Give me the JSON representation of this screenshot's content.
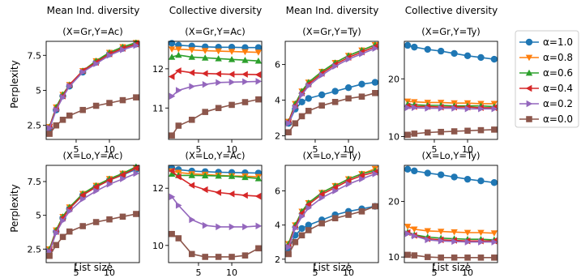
{
  "figure": {
    "column_titles": [
      "Mean Ind. diversity",
      "Collective diversity",
      "Mean Ind. diversity",
      "Collective diversity"
    ],
    "xlabel": "List size",
    "ylabel": "Perplexity"
  },
  "legend": [
    {
      "label": "α=1.0",
      "color": "#1f77b4",
      "marker": "circle"
    },
    {
      "label": "α=0.8",
      "color": "#ff7f0e",
      "marker": "triangle-down"
    },
    {
      "label": "α=0.6",
      "color": "#2ca02c",
      "marker": "triangle-up"
    },
    {
      "label": "α=0.4",
      "color": "#d62728",
      "marker": "triangle-left"
    },
    {
      "label": "α=0.2",
      "color": "#9467bd",
      "marker": "triangle-right"
    },
    {
      "label": "α=0.0",
      "color": "#8c564b",
      "marker": "square"
    }
  ],
  "chart_data": [
    {
      "type": "line",
      "title": "(X=Gr,Y=Ac)",
      "xlim": [
        0.5,
        14.5
      ],
      "ylim": [
        1.5,
        8.5
      ],
      "yticks": [
        2.5,
        5.0,
        7.5
      ],
      "xticks": [
        5,
        10
      ],
      "x": [
        1,
        2,
        3,
        4,
        6,
        8,
        10,
        12,
        14
      ],
      "series": [
        {
          "name": "α=1.0",
          "values": [
            2.3,
            3.6,
            4.6,
            5.3,
            6.3,
            7.0,
            7.6,
            8.0,
            8.3
          ]
        },
        {
          "name": "α=0.8",
          "values": [
            2.4,
            3.8,
            4.7,
            5.4,
            6.4,
            7.1,
            7.7,
            8.1,
            8.4
          ]
        },
        {
          "name": "α=0.6",
          "values": [
            2.4,
            3.8,
            4.7,
            5.4,
            6.4,
            7.1,
            7.7,
            8.1,
            8.4
          ]
        },
        {
          "name": "α=0.4",
          "values": [
            2.4,
            3.7,
            4.6,
            5.4,
            6.4,
            7.0,
            7.6,
            8.0,
            8.3
          ]
        },
        {
          "name": "α=0.2",
          "values": [
            2.3,
            3.6,
            4.5,
            5.3,
            6.3,
            6.9,
            7.5,
            7.9,
            8.2
          ]
        },
        {
          "name": "α=0.0",
          "values": [
            1.9,
            2.5,
            2.9,
            3.2,
            3.6,
            3.9,
            4.1,
            4.3,
            4.5
          ]
        }
      ]
    },
    {
      "type": "line",
      "title": "(X=Gr,Y=Ac)",
      "xlim": [
        0.5,
        14.5
      ],
      "ylim": [
        10.2,
        12.7
      ],
      "yticks": [
        11,
        12
      ],
      "xticks": [
        5,
        10
      ],
      "x": [
        1,
        2,
        4,
        6,
        8,
        10,
        12,
        14
      ],
      "series": [
        {
          "name": "α=1.0",
          "values": [
            12.65,
            12.6,
            12.58,
            12.56,
            12.55,
            12.55,
            12.54,
            12.54
          ]
        },
        {
          "name": "α=0.8",
          "values": [
            12.5,
            12.5,
            12.48,
            12.46,
            12.45,
            12.44,
            12.43,
            12.42
          ]
        },
        {
          "name": "α=0.6",
          "values": [
            12.3,
            12.35,
            12.3,
            12.28,
            12.26,
            12.24,
            12.22,
            12.2
          ]
        },
        {
          "name": "α=0.4",
          "values": [
            11.8,
            11.95,
            11.9,
            11.88,
            11.87,
            11.86,
            11.86,
            11.85
          ]
        },
        {
          "name": "α=0.2",
          "values": [
            11.3,
            11.45,
            11.55,
            11.6,
            11.65,
            11.66,
            11.67,
            11.68
          ]
        },
        {
          "name": "α=0.0",
          "values": [
            10.3,
            10.55,
            10.7,
            10.9,
            11.0,
            11.08,
            11.15,
            11.22
          ]
        }
      ]
    },
    {
      "type": "line",
      "title": "(X=Gr,Y=Ty)",
      "xlim": [
        0.5,
        14.5
      ],
      "ylim": [
        1.8,
        7.3
      ],
      "yticks": [
        2,
        4,
        6
      ],
      "xticks": [
        5,
        10
      ],
      "x": [
        1,
        2,
        3,
        4,
        6,
        8,
        10,
        12,
        14
      ],
      "series": [
        {
          "name": "α=1.0",
          "values": [
            2.7,
            3.5,
            3.9,
            4.1,
            4.3,
            4.5,
            4.7,
            4.9,
            5.0
          ]
        },
        {
          "name": "α=0.8",
          "values": [
            2.8,
            3.8,
            4.5,
            5.0,
            5.6,
            6.1,
            6.5,
            6.8,
            7.1
          ]
        },
        {
          "name": "α=0.6",
          "values": [
            2.8,
            3.8,
            4.5,
            5.0,
            5.6,
            6.1,
            6.5,
            6.8,
            7.1
          ]
        },
        {
          "name": "α=0.4",
          "values": [
            2.8,
            3.7,
            4.4,
            4.9,
            5.5,
            6.0,
            6.4,
            6.7,
            7.0
          ]
        },
        {
          "name": "α=0.2",
          "values": [
            2.7,
            3.6,
            4.3,
            4.8,
            5.4,
            5.9,
            6.3,
            6.6,
            6.9
          ]
        },
        {
          "name": "α=0.0",
          "values": [
            2.2,
            2.7,
            3.1,
            3.4,
            3.7,
            3.9,
            4.1,
            4.2,
            4.4
          ]
        }
      ]
    },
    {
      "type": "line",
      "title": "(X=Gr,Y=Ty)",
      "xlim": [
        0.5,
        14.5
      ],
      "ylim": [
        9.5,
        26.5
      ],
      "yticks": [
        10,
        20
      ],
      "xticks": [
        5,
        10
      ],
      "x": [
        1,
        2,
        4,
        6,
        8,
        10,
        12,
        14
      ],
      "series": [
        {
          "name": "α=1.0",
          "values": [
            25.8,
            25.5,
            25.1,
            24.8,
            24.4,
            24.0,
            23.7,
            23.4
          ]
        },
        {
          "name": "α=0.8",
          "values": [
            16.1,
            16.0,
            15.9,
            15.9,
            15.8,
            15.8,
            15.7,
            15.7
          ]
        },
        {
          "name": "α=0.6",
          "values": [
            15.6,
            15.5,
            15.4,
            15.4,
            15.3,
            15.3,
            15.3,
            15.2
          ]
        },
        {
          "name": "α=0.4",
          "values": [
            15.3,
            15.2,
            15.2,
            15.1,
            15.1,
            15.1,
            15.0,
            15.0
          ]
        },
        {
          "name": "α=0.2",
          "values": [
            15.0,
            15.0,
            14.9,
            14.9,
            14.9,
            14.8,
            14.8,
            14.8
          ]
        },
        {
          "name": "α=0.0",
          "values": [
            10.3,
            10.5,
            10.7,
            10.8,
            10.9,
            11.0,
            11.1,
            11.2
          ]
        }
      ]
    },
    {
      "type": "line",
      "title": "(X=Lo,Y=Ac)",
      "xlim": [
        0.5,
        14.5
      ],
      "ylim": [
        1.5,
        8.7
      ],
      "yticks": [
        2.5,
        5.0,
        7.5
      ],
      "xticks": [
        5,
        10
      ],
      "x": [
        1,
        2,
        3,
        4,
        6,
        8,
        10,
        12,
        14
      ],
      "series": [
        {
          "name": "α=1.0",
          "values": [
            2.4,
            3.8,
            4.8,
            5.5,
            6.5,
            7.1,
            7.6,
            8.0,
            8.4
          ]
        },
        {
          "name": "α=0.8",
          "values": [
            2.5,
            3.9,
            4.9,
            5.6,
            6.6,
            7.2,
            7.7,
            8.1,
            8.5
          ]
        },
        {
          "name": "α=0.6",
          "values": [
            2.5,
            3.9,
            4.9,
            5.6,
            6.6,
            7.2,
            7.7,
            8.1,
            8.6
          ]
        },
        {
          "name": "α=0.4",
          "values": [
            2.4,
            3.8,
            4.8,
            5.5,
            6.5,
            7.1,
            7.6,
            8.0,
            8.5
          ]
        },
        {
          "name": "α=0.2",
          "values": [
            2.3,
            3.7,
            4.6,
            5.3,
            6.2,
            6.8,
            7.3,
            7.7,
            8.1
          ]
        },
        {
          "name": "α=0.0",
          "values": [
            2.0,
            2.8,
            3.4,
            3.8,
            4.2,
            4.5,
            4.7,
            4.9,
            5.1
          ]
        }
      ]
    },
    {
      "type": "line",
      "title": "(X=Lo,Y=Ac)",
      "xlim": [
        0.5,
        14.5
      ],
      "ylim": [
        9.4,
        12.8
      ],
      "yticks": [
        10,
        12
      ],
      "xticks": [
        5,
        10
      ],
      "x": [
        1,
        2,
        4,
        6,
        8,
        10,
        12,
        14
      ],
      "series": [
        {
          "name": "α=1.0",
          "values": [
            12.7,
            12.65,
            12.6,
            12.58,
            12.56,
            12.55,
            12.54,
            12.53
          ]
        },
        {
          "name": "α=0.8",
          "values": [
            12.6,
            12.55,
            12.5,
            12.48,
            12.45,
            12.43,
            12.42,
            12.4
          ]
        },
        {
          "name": "α=0.6",
          "values": [
            12.5,
            12.45,
            12.45,
            12.44,
            12.43,
            12.42,
            12.38,
            12.34
          ]
        },
        {
          "name": "α=0.4",
          "values": [
            12.6,
            12.4,
            12.1,
            11.95,
            11.85,
            11.8,
            11.75,
            11.72
          ]
        },
        {
          "name": "α=0.2",
          "values": [
            11.7,
            11.4,
            10.9,
            10.7,
            10.65,
            10.65,
            10.65,
            10.68
          ]
        },
        {
          "name": "α=0.0",
          "values": [
            10.4,
            10.25,
            9.7,
            9.6,
            9.6,
            9.6,
            9.65,
            9.9
          ]
        }
      ]
    },
    {
      "type": "line",
      "title": "(X=Lo,Y=Ty)",
      "xlim": [
        0.5,
        14.5
      ],
      "ylim": [
        1.8,
        7.5
      ],
      "yticks": [
        2,
        4,
        6
      ],
      "xticks": [
        5,
        10
      ],
      "x": [
        1,
        2,
        3,
        4,
        6,
        8,
        10,
        12,
        14
      ],
      "series": [
        {
          "name": "α=1.0",
          "values": [
            2.6,
            3.4,
            3.8,
            4.0,
            4.3,
            4.6,
            4.8,
            4.95,
            5.1
          ]
        },
        {
          "name": "α=0.8",
          "values": [
            2.9,
            4.0,
            4.8,
            5.3,
            5.9,
            6.3,
            6.7,
            7.0,
            7.3
          ]
        },
        {
          "name": "α=0.6",
          "values": [
            2.9,
            4.0,
            4.8,
            5.3,
            5.9,
            6.3,
            6.7,
            7.0,
            7.2
          ]
        },
        {
          "name": "α=0.4",
          "values": [
            2.8,
            3.9,
            4.7,
            5.2,
            5.8,
            6.2,
            6.6,
            6.9,
            7.1
          ]
        },
        {
          "name": "α=0.2",
          "values": [
            2.7,
            3.8,
            4.5,
            5.0,
            5.6,
            6.0,
            6.4,
            6.7,
            7.0
          ]
        },
        {
          "name": "α=0.0",
          "values": [
            2.3,
            3.0,
            3.4,
            3.7,
            4.1,
            4.4,
            4.6,
            4.8,
            5.1
          ]
        }
      ]
    },
    {
      "type": "line",
      "title": "(X=Lo,Y=Ty)",
      "xlim": [
        0.5,
        14.5
      ],
      "ylim": [
        9.0,
        26.5
      ],
      "yticks": [
        10,
        20
      ],
      "xticks": [
        5,
        10
      ],
      "x": [
        1,
        2,
        4,
        6,
        8,
        10,
        12,
        14
      ],
      "series": [
        {
          "name": "α=1.0",
          "values": [
            25.8,
            25.5,
            25.1,
            24.8,
            24.4,
            24.0,
            23.7,
            23.4
          ]
        },
        {
          "name": "α=0.8",
          "values": [
            15.5,
            15.0,
            14.7,
            14.6,
            14.5,
            14.4,
            14.4,
            14.3
          ]
        },
        {
          "name": "α=0.6",
          "values": [
            14.5,
            14.0,
            13.6,
            13.4,
            13.3,
            13.2,
            13.2,
            13.1
          ]
        },
        {
          "name": "α=0.4",
          "values": [
            14.4,
            13.9,
            13.3,
            13.1,
            13.0,
            12.9,
            12.9,
            12.9
          ]
        },
        {
          "name": "α=0.2",
          "values": [
            14.2,
            13.8,
            13.1,
            12.9,
            12.8,
            12.7,
            12.7,
            12.7
          ]
        },
        {
          "name": "α=0.0",
          "values": [
            10.4,
            10.3,
            10.0,
            9.9,
            9.9,
            9.9,
            9.9,
            9.9
          ]
        }
      ]
    }
  ]
}
